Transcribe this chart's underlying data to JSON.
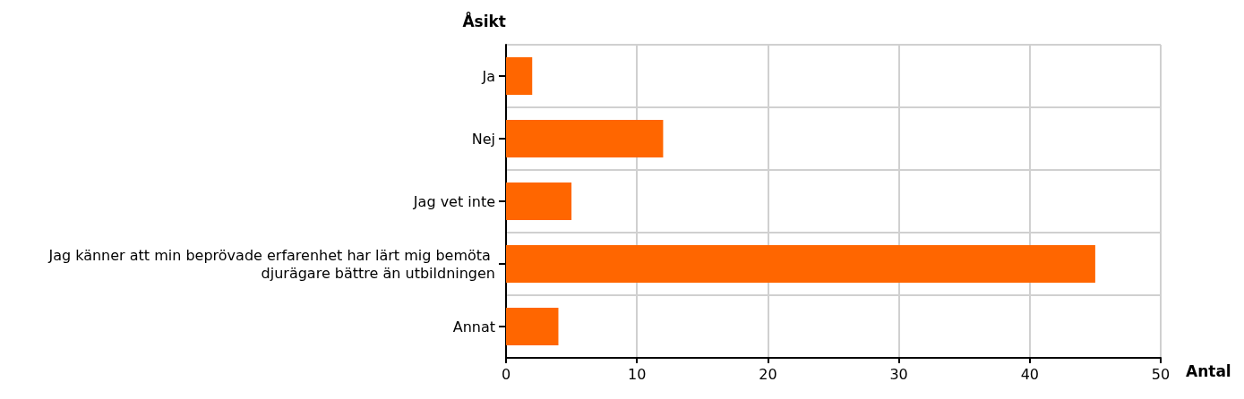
{
  "chart_data": {
    "type": "bar",
    "orientation": "horizontal",
    "ylabel": "Åsikt",
    "xlabel": "Antal",
    "categories": [
      "Ja",
      "Nej",
      "Jag vet inte",
      "Jag känner att min beprövade erfarenhet har lärt mig bemöta djurägare bättre än utbildningen",
      "Annat"
    ],
    "values": [
      2,
      12,
      5,
      45,
      4
    ],
    "color": "#ff6600",
    "xlim": [
      0,
      50
    ],
    "xticks": [
      0,
      10,
      20,
      30,
      40,
      50
    ],
    "grid": true
  }
}
